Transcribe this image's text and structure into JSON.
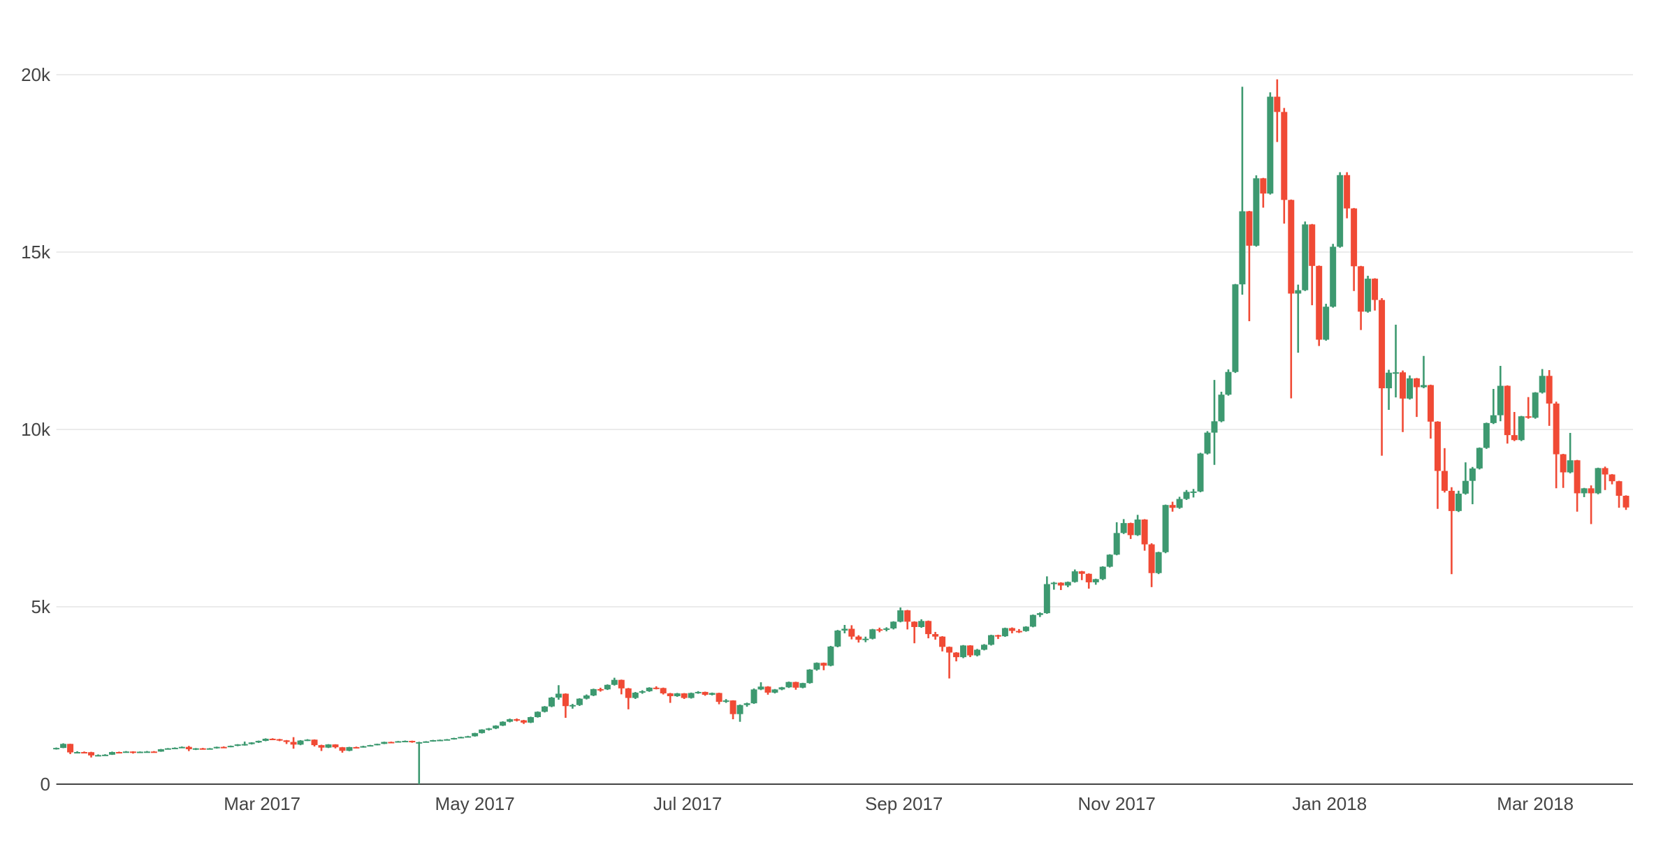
{
  "chart_data": {
    "type": "candlestick",
    "title": "",
    "xlabel": "",
    "ylabel": "",
    "legend": null,
    "grid": "horizontal-only",
    "background": "#ffffff",
    "colors": {
      "increasing": "#3d9970",
      "decreasing": "#f04a35",
      "grid_line": "#ebebeb",
      "zero_line": "#444444",
      "tick_text": "#444444"
    },
    "y_axis": {
      "range": [
        0,
        20300
      ],
      "ticks": [
        {
          "label": "0",
          "value": 0
        },
        {
          "label": "5k",
          "value": 5000
        },
        {
          "label": "10k",
          "value": 10000
        },
        {
          "label": "15k",
          "value": 15000
        },
        {
          "label": "20k",
          "value": 20000
        }
      ]
    },
    "x_axis": {
      "start_date": "2017-01-01",
      "day_step": 2,
      "span_days": 452,
      "ticks": [
        {
          "label": "Mar 2017",
          "day": 59
        },
        {
          "label": "May 2017",
          "day": 120
        },
        {
          "label": "Jul 2017",
          "day": 181
        },
        {
          "label": "Sep 2017",
          "day": 243
        },
        {
          "label": "Nov 2017",
          "day": 304
        },
        {
          "label": "Jan 2018",
          "day": 365
        },
        {
          "label": "Mar 2018",
          "day": 424
        }
      ]
    },
    "candles_format": [
      "open",
      "high",
      "low",
      "close"
    ],
    "candles": [
      [
        998,
        1032,
        975,
        1021
      ],
      [
        1021,
        1152,
        1015,
        1135
      ],
      [
        1135,
        1139,
        848,
        895
      ],
      [
        895,
        928,
        868,
        905
      ],
      [
        905,
        920,
        882,
        901
      ],
      [
        901,
        912,
        752,
        810
      ],
      [
        810,
        838,
        790,
        820
      ],
      [
        820,
        844,
        806,
        830
      ],
      [
        830,
        918,
        824,
        905
      ],
      [
        905,
        916,
        872,
        895
      ],
      [
        895,
        932,
        888,
        920
      ],
      [
        920,
        928,
        862,
        890
      ],
      [
        890,
        922,
        880,
        915
      ],
      [
        915,
        934,
        901,
        920
      ],
      [
        920,
        932,
        894,
        918
      ],
      [
        918,
        992,
        912,
        985
      ],
      [
        985,
        1018,
        978,
        1010
      ],
      [
        1010,
        1036,
        998,
        1025
      ],
      [
        1025,
        1062,
        1018,
        1050
      ],
      [
        1050,
        1078,
        932,
        985
      ],
      [
        985,
        1018,
        962,
        1010
      ],
      [
        1010,
        1022,
        972,
        995
      ],
      [
        995,
        1018,
        984,
        1010
      ],
      [
        1010,
        1058,
        1002,
        1050
      ],
      [
        1050,
        1064,
        1032,
        1048
      ],
      [
        1048,
        1088,
        1040,
        1080
      ],
      [
        1080,
        1128,
        1070,
        1120
      ],
      [
        1120,
        1200,
        1086,
        1130
      ],
      [
        1130,
        1182,
        1118,
        1175
      ],
      [
        1175,
        1228,
        1162,
        1220
      ],
      [
        1220,
        1292,
        1210,
        1280
      ],
      [
        1280,
        1294,
        1242,
        1267
      ],
      [
        1267,
        1278,
        1212,
        1235
      ],
      [
        1235,
        1244,
        1132,
        1190
      ],
      [
        1190,
        1325,
        1000,
        1115
      ],
      [
        1115,
        1242,
        1098,
        1230
      ],
      [
        1230,
        1268,
        1216,
        1255
      ],
      [
        1255,
        1262,
        1062,
        1100
      ],
      [
        1100,
        1112,
        935,
        1030
      ],
      [
        1030,
        1128,
        1018,
        1120
      ],
      [
        1120,
        1126,
        1008,
        1040
      ],
      [
        1040,
        1048,
        888,
        940
      ],
      [
        940,
        1052,
        928,
        1045
      ],
      [
        1045,
        1058,
        1012,
        1040
      ],
      [
        1040,
        1082,
        1030,
        1070
      ],
      [
        1070,
        1108,
        1062,
        1100
      ],
      [
        1100,
        1142,
        1092,
        1135
      ],
      [
        1135,
        1198,
        1128,
        1190
      ],
      [
        1190,
        1199,
        1166,
        1180
      ],
      [
        1180,
        1218,
        1172,
        1210
      ],
      [
        1210,
        1230,
        1198,
        1220
      ],
      [
        1220,
        1226,
        1168,
        1180
      ],
      [
        1180,
        1195,
        0,
        1183
      ],
      [
        1183,
        1212,
        1176,
        1205
      ],
      [
        1205,
        1248,
        1198,
        1240
      ],
      [
        1240,
        1258,
        1228,
        1250
      ],
      [
        1250,
        1272,
        1240,
        1265
      ],
      [
        1265,
        1308,
        1256,
        1300
      ],
      [
        1300,
        1338,
        1290,
        1330
      ],
      [
        1330,
        1362,
        1318,
        1350
      ],
      [
        1350,
        1448,
        1340,
        1440
      ],
      [
        1440,
        1548,
        1428,
        1540
      ],
      [
        1540,
        1584,
        1512,
        1570
      ],
      [
        1570,
        1660,
        1552,
        1650
      ],
      [
        1650,
        1772,
        1638,
        1760
      ],
      [
        1760,
        1848,
        1742,
        1830
      ],
      [
        1830,
        1852,
        1768,
        1800
      ],
      [
        1800,
        1812,
        1698,
        1735
      ],
      [
        1735,
        1902,
        1722,
        1890
      ],
      [
        1890,
        2052,
        1876,
        2040
      ],
      [
        2040,
        2202,
        2022,
        2190
      ],
      [
        2190,
        2458,
        2170,
        2440
      ],
      [
        2440,
        2790,
        2380,
        2550
      ],
      [
        2550,
        2560,
        1870,
        2200
      ],
      [
        2200,
        2262,
        2128,
        2230
      ],
      [
        2230,
        2422,
        2205,
        2410
      ],
      [
        2410,
        2528,
        2388,
        2500
      ],
      [
        2500,
        2692,
        2482,
        2680
      ],
      [
        2680,
        2718,
        2608,
        2672
      ],
      [
        2672,
        2812,
        2655,
        2800
      ],
      [
        2800,
        3000,
        2780,
        2940
      ],
      [
        2940,
        2948,
        2532,
        2700
      ],
      [
        2700,
        2712,
        2110,
        2430
      ],
      [
        2430,
        2598,
        2402,
        2580
      ],
      [
        2580,
        2648,
        2548,
        2620
      ],
      [
        2620,
        2732,
        2602,
        2720
      ],
      [
        2720,
        2758,
        2672,
        2710
      ],
      [
        2710,
        2722,
        2528,
        2560
      ],
      [
        2560,
        2572,
        2292,
        2480
      ],
      [
        2480,
        2572,
        2462,
        2560
      ],
      [
        2560,
        2568,
        2402,
        2430
      ],
      [
        2430,
        2582,
        2412,
        2570
      ],
      [
        2570,
        2622,
        2548,
        2600
      ],
      [
        2600,
        2608,
        2492,
        2520
      ],
      [
        2520,
        2582,
        2502,
        2570
      ],
      [
        2570,
        2578,
        2252,
        2320
      ],
      [
        2320,
        2398,
        2292,
        2360
      ],
      [
        2360,
        2365,
        1830,
        1975
      ],
      [
        1975,
        2245,
        1758,
        2230
      ],
      [
        2230,
        2298,
        2182,
        2280
      ],
      [
        2280,
        2698,
        2262,
        2670
      ],
      [
        2670,
        2872,
        2650,
        2750
      ],
      [
        2750,
        2762,
        2522,
        2580
      ],
      [
        2580,
        2682,
        2558,
        2670
      ],
      [
        2670,
        2742,
        2648,
        2730
      ],
      [
        2730,
        2892,
        2712,
        2880
      ],
      [
        2880,
        2888,
        2662,
        2720
      ],
      [
        2720,
        2858,
        2702,
        2850
      ],
      [
        2850,
        3242,
        2832,
        3230
      ],
      [
        3230,
        3432,
        3198,
        3420
      ],
      [
        3420,
        3428,
        3212,
        3340
      ],
      [
        3340,
        3898,
        3322,
        3880
      ],
      [
        3880,
        4348,
        3858,
        4330
      ],
      [
        4330,
        4488,
        4252,
        4380
      ],
      [
        4380,
        4480,
        4082,
        4160
      ],
      [
        4160,
        4198,
        3992,
        4070
      ],
      [
        4070,
        4158,
        4002,
        4100
      ],
      [
        4100,
        4378,
        4080,
        4365
      ],
      [
        4365,
        4412,
        4282,
        4350
      ],
      [
        4350,
        4422,
        4308,
        4390
      ],
      [
        4390,
        4592,
        4362,
        4580
      ],
      [
        4580,
        4980,
        4562,
        4900
      ],
      [
        4900,
        4912,
        4362,
        4580
      ],
      [
        4580,
        4592,
        3972,
        4430
      ],
      [
        4430,
        4648,
        4408,
        4600
      ],
      [
        4600,
        4612,
        4112,
        4230
      ],
      [
        4230,
        4292,
        4072,
        4160
      ],
      [
        4160,
        4172,
        3742,
        3870
      ],
      [
        3870,
        3880,
        2980,
        3710
      ],
      [
        3710,
        3722,
        3462,
        3580
      ],
      [
        3580,
        3922,
        3552,
        3910
      ],
      [
        3910,
        3918,
        3582,
        3630
      ],
      [
        3630,
        3812,
        3602,
        3790
      ],
      [
        3790,
        3948,
        3772,
        3930
      ],
      [
        3930,
        4212,
        3908,
        4200
      ],
      [
        4200,
        4212,
        4092,
        4170
      ],
      [
        4170,
        4412,
        4152,
        4400
      ],
      [
        4400,
        4418,
        4252,
        4320
      ],
      [
        4320,
        4372,
        4262,
        4315
      ],
      [
        4315,
        4452,
        4298,
        4440
      ],
      [
        4440,
        4782,
        4422,
        4770
      ],
      [
        4770,
        4842,
        4712,
        4820
      ],
      [
        4820,
        5858,
        4802,
        5640
      ],
      [
        5640,
        5702,
        5482,
        5680
      ],
      [
        5680,
        5692,
        5472,
        5600
      ],
      [
        5600,
        5712,
        5552,
        5700
      ],
      [
        5700,
        6052,
        5682,
        6000
      ],
      [
        6000,
        6012,
        5752,
        5930
      ],
      [
        5930,
        5942,
        5512,
        5690
      ],
      [
        5690,
        5792,
        5622,
        5780
      ],
      [
        5780,
        6142,
        5752,
        6130
      ],
      [
        6130,
        6482,
        6108,
        6470
      ],
      [
        6470,
        7384,
        6452,
        7080
      ],
      [
        7080,
        7472,
        7052,
        7360
      ],
      [
        7360,
        7372,
        6912,
        7020
      ],
      [
        7020,
        7592,
        6998,
        7460
      ],
      [
        7460,
        7472,
        6582,
        6760
      ],
      [
        6760,
        6790,
        5555,
        5950
      ],
      [
        5950,
        6552,
        5922,
        6540
      ],
      [
        6540,
        7882,
        6512,
        7870
      ],
      [
        7870,
        7962,
        7682,
        7790
      ],
      [
        7790,
        8102,
        7762,
        8040
      ],
      [
        8040,
        8292,
        8012,
        8240
      ],
      [
        8240,
        8322,
        8082,
        8250
      ],
      [
        8250,
        9342,
        8228,
        9320
      ],
      [
        9320,
        9952,
        9292,
        9910
      ],
      [
        9910,
        11395,
        9000,
        10230
      ],
      [
        10230,
        11062,
        10202,
        10980
      ],
      [
        10980,
        11692,
        10952,
        11620
      ],
      [
        11620,
        14102,
        11592,
        14090
      ],
      [
        14090,
        19660,
        13800,
        16150
      ],
      [
        16150,
        16162,
        13052,
        15180
      ],
      [
        15180,
        17162,
        15152,
        17080
      ],
      [
        17080,
        17092,
        16252,
        16650
      ],
      [
        16650,
        19502,
        16622,
        19380
      ],
      [
        19380,
        19870,
        18102,
        18950
      ],
      [
        18950,
        19062,
        15802,
        16470
      ],
      [
        16470,
        16482,
        10875,
        13830
      ],
      [
        13830,
        14082,
        12162,
        13925
      ],
      [
        13925,
        15862,
        13902,
        15780
      ],
      [
        15780,
        15792,
        13502,
        14610
      ],
      [
        14610,
        14622,
        12352,
        12530
      ],
      [
        12530,
        13542,
        12502,
        13460
      ],
      [
        13460,
        15232,
        13432,
        15150
      ],
      [
        15150,
        17252,
        15122,
        17170
      ],
      [
        17170,
        17252,
        15952,
        16230
      ],
      [
        16230,
        16242,
        13902,
        14600
      ],
      [
        14600,
        14612,
        12802,
        13320
      ],
      [
        13320,
        14332,
        13292,
        14250
      ],
      [
        14250,
        14262,
        13352,
        13650
      ],
      [
        13650,
        13700,
        9260,
        11160
      ],
      [
        11160,
        11682,
        10552,
        11600
      ],
      [
        11600,
        12952,
        10902,
        11610
      ],
      [
        11610,
        11662,
        9927,
        10870
      ],
      [
        10870,
        11522,
        10842,
        11440
      ],
      [
        11440,
        11452,
        10352,
        11190
      ],
      [
        11190,
        12072,
        11162,
        11250
      ],
      [
        11250,
        11262,
        9742,
        10220
      ],
      [
        10220,
        10232,
        7762,
        8830
      ],
      [
        8830,
        9472,
        8222,
        8270
      ],
      [
        8270,
        8372,
        5920,
        7700
      ],
      [
        7700,
        8272,
        7672,
        8190
      ],
      [
        8190,
        9072,
        8162,
        8550
      ],
      [
        8550,
        8942,
        7892,
        8900
      ],
      [
        8900,
        9492,
        8872,
        9480
      ],
      [
        9480,
        10192,
        9452,
        10180
      ],
      [
        10180,
        11142,
        10152,
        10400
      ],
      [
        10400,
        11792,
        10232,
        11230
      ],
      [
        11230,
        11242,
        9602,
        9840
      ],
      [
        9840,
        10492,
        9672,
        9700
      ],
      [
        9700,
        10382,
        9672,
        10370
      ],
      [
        10370,
        10912,
        10302,
        10330
      ],
      [
        10330,
        11052,
        10302,
        11040
      ],
      [
        11040,
        11702,
        11012,
        11510
      ],
      [
        11510,
        11672,
        10102,
        10730
      ],
      [
        10730,
        10782,
        8342,
        9300
      ],
      [
        9300,
        9312,
        8352,
        8790
      ],
      [
        8790,
        9902,
        8762,
        9130
      ],
      [
        9130,
        9142,
        7682,
        8200
      ],
      [
        8200,
        8352,
        8092,
        8340
      ],
      [
        8340,
        8422,
        7332,
        8200
      ],
      [
        8200,
        8922,
        8172,
        8910
      ],
      [
        8910,
        8952,
        8292,
        8730
      ],
      [
        8730,
        8742,
        8452,
        8540
      ],
      [
        8540,
        8552,
        7792,
        8130
      ],
      [
        8130,
        8142,
        7732,
        7800
      ]
    ]
  }
}
